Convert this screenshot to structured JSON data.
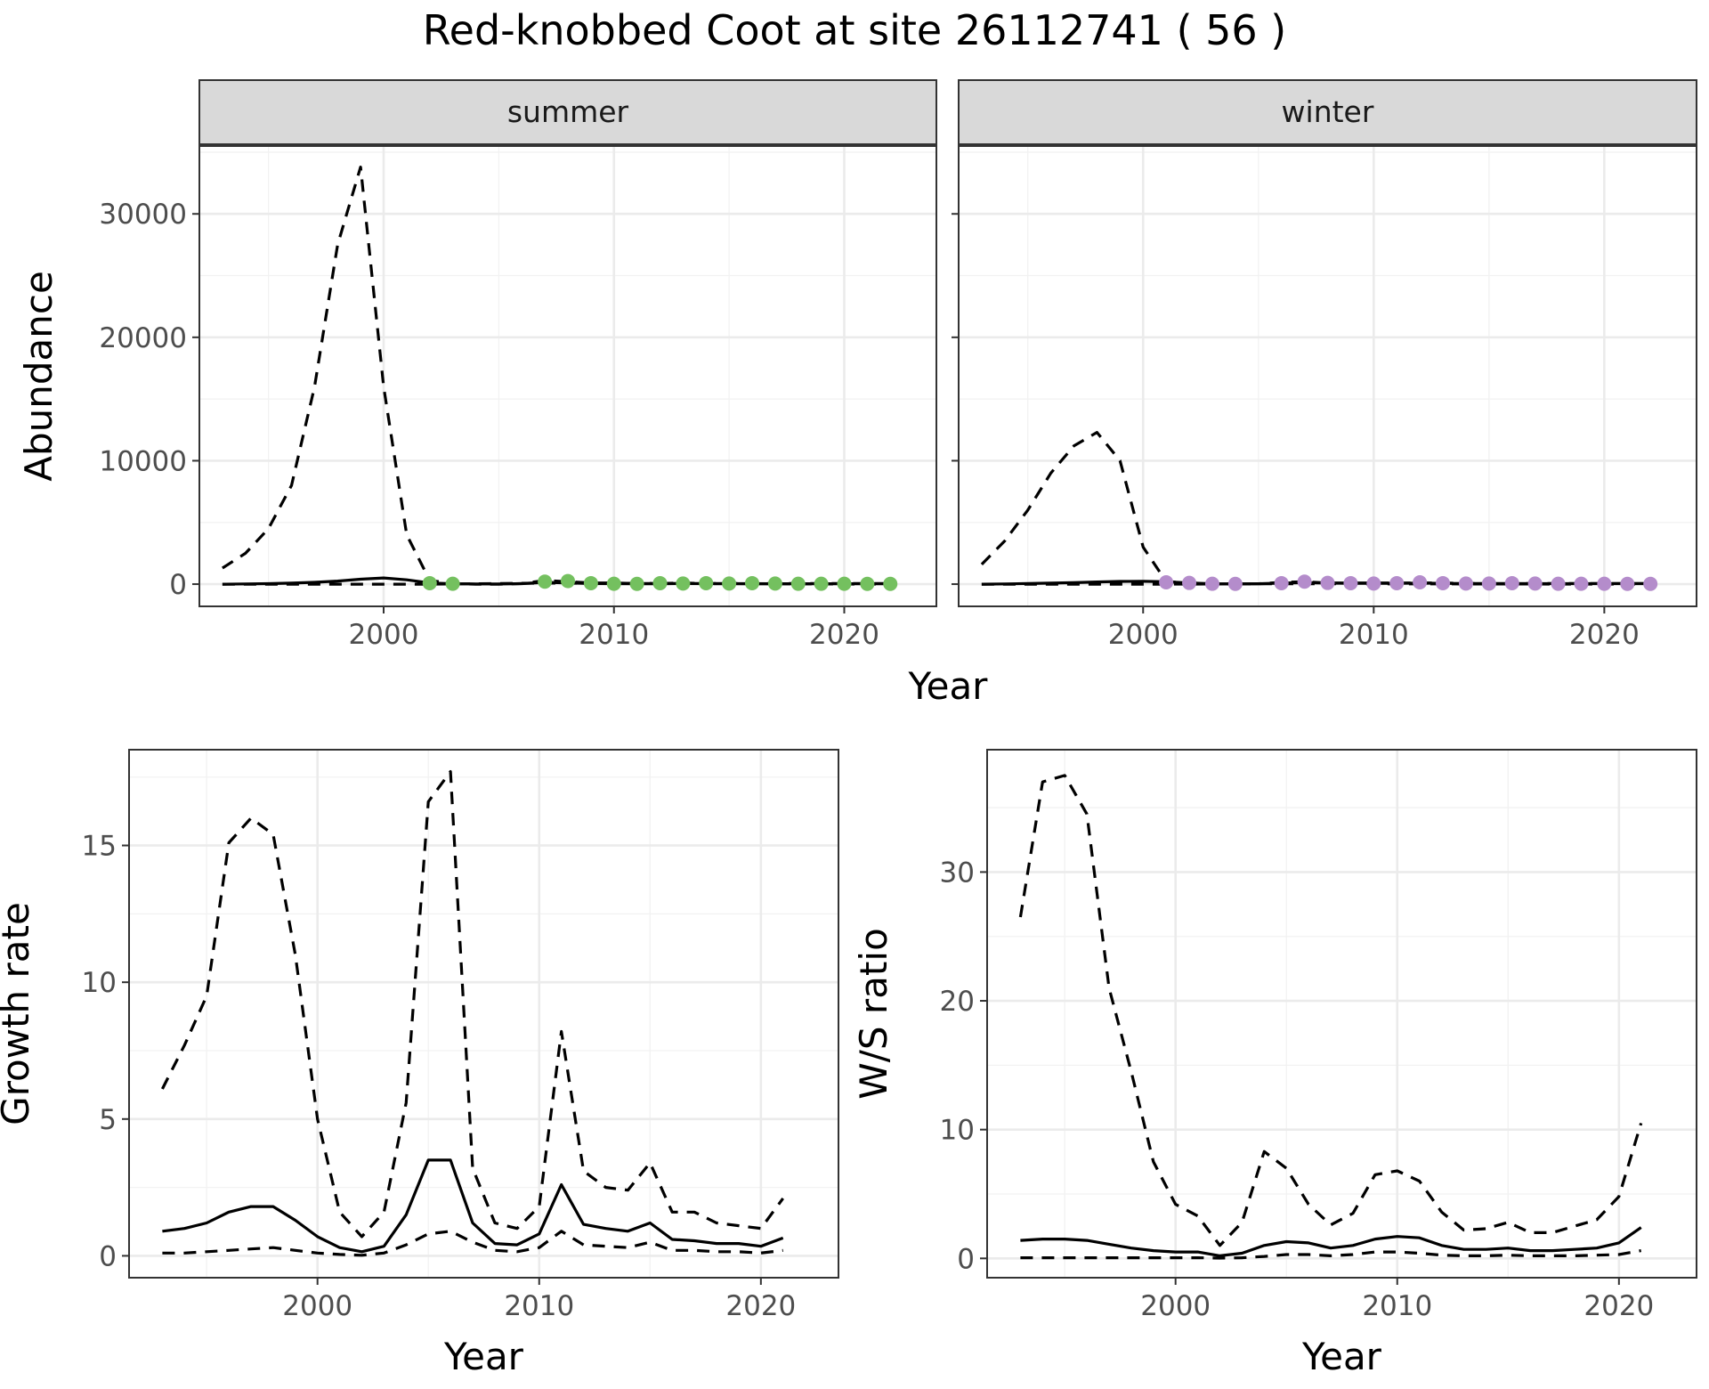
{
  "figure": {
    "title": "Red-knobbed Coot at site 26112741 ( 56 )"
  },
  "chart_data": [
    {
      "type": "line",
      "panel": "abundance-summer",
      "strip_label": "summer",
      "xlabel": "Year",
      "ylabel": "Abundance",
      "xlim": [
        1992,
        2024
      ],
      "ylim": [
        -1800,
        35500
      ],
      "x_ticks": [
        2000,
        2010,
        2020
      ],
      "y_ticks": [
        0,
        10000,
        20000,
        30000
      ],
      "point_color": "#74c05f",
      "series": [
        {
          "style": "dashed",
          "x": [
            1993,
            1994,
            1995,
            1996,
            1997,
            1998,
            1999,
            2000,
            2001,
            2002,
            2003,
            2004,
            2005,
            2006,
            2007,
            2008,
            2009,
            2010,
            2011,
            2012,
            2013,
            2014,
            2015,
            2016,
            2017,
            2018,
            2019,
            2020,
            2021,
            2022
          ],
          "y": [
            1300,
            2500,
            4500,
            8000,
            16000,
            27500,
            33800,
            16000,
            4000,
            300,
            50,
            0,
            0,
            50,
            300,
            200,
            100,
            100,
            50,
            50,
            100,
            50,
            50,
            50,
            50,
            50,
            50,
            50,
            50,
            50
          ]
        },
        {
          "style": "solid",
          "x": [
            1993,
            1994,
            1995,
            1996,
            1997,
            1998,
            1999,
            2000,
            2001,
            2002,
            2003,
            2004,
            2005,
            2006,
            2007,
            2008,
            2009,
            2010,
            2011,
            2012,
            2013,
            2014,
            2015,
            2016,
            2017,
            2018,
            2019,
            2020,
            2021,
            2022
          ],
          "y": [
            0,
            20,
            40,
            80,
            150,
            250,
            400,
            500,
            350,
            100,
            30,
            20,
            10,
            40,
            150,
            100,
            50,
            40,
            30,
            30,
            50,
            40,
            40,
            40,
            30,
            30,
            30,
            30,
            30,
            30
          ]
        },
        {
          "style": "dashed-lower",
          "x": [
            1993,
            2000,
            2002,
            2007,
            2022
          ],
          "y": [
            0,
            0,
            0,
            80,
            0
          ]
        }
      ],
      "points": {
        "x": [
          2002,
          2003,
          2007,
          2008,
          2009,
          2010,
          2011,
          2012,
          2013,
          2014,
          2015,
          2016,
          2017,
          2018,
          2019,
          2020,
          2021,
          2022
        ],
        "y": [
          80,
          30,
          200,
          250,
          80,
          30,
          20,
          80,
          50,
          80,
          50,
          80,
          50,
          30,
          30,
          30,
          20,
          20
        ]
      }
    },
    {
      "type": "line",
      "panel": "abundance-winter",
      "strip_label": "winter",
      "xlabel": "Year",
      "ylabel": "",
      "xlim": [
        1992,
        2024
      ],
      "ylim": [
        -1800,
        35500
      ],
      "x_ticks": [
        2000,
        2010,
        2020
      ],
      "y_ticks": [
        0,
        10000,
        20000,
        30000
      ],
      "point_color": "#b48ccb",
      "series": [
        {
          "style": "dashed",
          "x": [
            1993,
            1994,
            1995,
            1996,
            1997,
            1998,
            1999,
            2000,
            2001,
            2002,
            2003,
            2004,
            2005,
            2006,
            2007,
            2008,
            2009,
            2010,
            2011,
            2012,
            2013,
            2014,
            2015,
            2016,
            2017,
            2018,
            2019,
            2020,
            2021,
            2022
          ],
          "y": [
            1600,
            3500,
            6000,
            9000,
            11200,
            12300,
            10000,
            3000,
            200,
            100,
            30,
            20,
            30,
            150,
            200,
            100,
            100,
            100,
            100,
            100,
            100,
            50,
            50,
            50,
            50,
            50,
            50,
            50,
            50,
            50
          ]
        },
        {
          "style": "solid",
          "x": [
            1993,
            1994,
            1995,
            1996,
            1997,
            1998,
            1999,
            2000,
            2001,
            2002,
            2003,
            2004,
            2005,
            2006,
            2007,
            2008,
            2009,
            2010,
            2011,
            2012,
            2013,
            2014,
            2015,
            2016,
            2017,
            2018,
            2019,
            2020,
            2021,
            2022
          ],
          "y": [
            0,
            20,
            50,
            80,
            120,
            180,
            220,
            230,
            200,
            100,
            30,
            20,
            30,
            80,
            120,
            80,
            60,
            60,
            60,
            80,
            60,
            50,
            50,
            50,
            40,
            40,
            40,
            40,
            40,
            40
          ]
        },
        {
          "style": "dashed-lower",
          "x": [
            1993,
            2000,
            2001,
            2006,
            2022
          ],
          "y": [
            0,
            0,
            0,
            30,
            0
          ]
        }
      ],
      "points": {
        "x": [
          2001,
          2002,
          2003,
          2004,
          2006,
          2007,
          2008,
          2009,
          2010,
          2011,
          2012,
          2013,
          2014,
          2015,
          2016,
          2017,
          2018,
          2019,
          2020,
          2021,
          2022
        ],
        "y": [
          150,
          100,
          30,
          20,
          80,
          200,
          100,
          80,
          50,
          80,
          150,
          80,
          50,
          50,
          80,
          50,
          30,
          30,
          30,
          20,
          20
        ]
      }
    },
    {
      "type": "line",
      "panel": "growth-rate",
      "strip_label": "",
      "xlabel": "Year",
      "ylabel": "Growth rate",
      "xlim": [
        1991.5,
        2023.5
      ],
      "ylim": [
        -0.8,
        18.5
      ],
      "x_ticks": [
        2000,
        2010,
        2020
      ],
      "y_ticks": [
        0,
        5,
        10,
        15
      ],
      "series": [
        {
          "style": "dashed",
          "x": [
            1993,
            1994,
            1995,
            1996,
            1997,
            1998,
            1999,
            2000,
            2001,
            2002,
            2003,
            2004,
            2005,
            2006,
            2007,
            2008,
            2009,
            2010,
            2011,
            2012,
            2013,
            2014,
            2015,
            2016,
            2017,
            2018,
            2019,
            2020,
            2021
          ],
          "y": [
            6.1,
            7.7,
            9.5,
            15.1,
            16.0,
            15.4,
            11.0,
            5.0,
            1.6,
            0.7,
            1.6,
            5.6,
            16.6,
            17.7,
            3.2,
            1.2,
            1.0,
            1.8,
            8.2,
            3.1,
            2.5,
            2.4,
            3.4,
            1.6,
            1.6,
            1.2,
            1.1,
            1.0,
            2.1
          ]
        },
        {
          "style": "solid",
          "x": [
            1993,
            1994,
            1995,
            1996,
            1997,
            1998,
            1999,
            2000,
            2001,
            2002,
            2003,
            2004,
            2005,
            2006,
            2007,
            2008,
            2009,
            2010,
            2011,
            2012,
            2013,
            2014,
            2015,
            2016,
            2017,
            2018,
            2019,
            2020,
            2021
          ],
          "y": [
            0.9,
            1.0,
            1.2,
            1.6,
            1.8,
            1.8,
            1.3,
            0.7,
            0.3,
            0.15,
            0.35,
            1.5,
            3.5,
            3.5,
            1.2,
            0.45,
            0.4,
            0.8,
            2.6,
            1.15,
            1.0,
            0.9,
            1.2,
            0.6,
            0.55,
            0.45,
            0.45,
            0.35,
            0.65
          ]
        },
        {
          "style": "dashed",
          "x": [
            1993,
            1994,
            1995,
            1996,
            1997,
            1998,
            1999,
            2000,
            2001,
            2002,
            2003,
            2004,
            2005,
            2006,
            2007,
            2008,
            2009,
            2010,
            2011,
            2012,
            2013,
            2014,
            2015,
            2016,
            2017,
            2018,
            2019,
            2020,
            2021
          ],
          "y": [
            0.1,
            0.1,
            0.15,
            0.2,
            0.25,
            0.3,
            0.2,
            0.1,
            0.05,
            0.02,
            0.1,
            0.4,
            0.8,
            0.9,
            0.5,
            0.2,
            0.15,
            0.3,
            0.9,
            0.4,
            0.35,
            0.3,
            0.5,
            0.2,
            0.2,
            0.15,
            0.15,
            0.1,
            0.2
          ]
        }
      ]
    },
    {
      "type": "line",
      "panel": "ws-ratio",
      "strip_label": "",
      "xlabel": "Year",
      "ylabel": "W/S ratio",
      "xlim": [
        1991.5,
        2023.5
      ],
      "ylim": [
        -1.5,
        39.5
      ],
      "x_ticks": [
        2000,
        2010,
        2020
      ],
      "y_ticks": [
        0,
        10,
        20,
        30
      ],
      "series": [
        {
          "style": "dashed",
          "x": [
            1993,
            1994,
            1995,
            1996,
            1997,
            1998,
            1999,
            2000,
            2001,
            2002,
            2003,
            2004,
            2005,
            2006,
            2007,
            2008,
            2009,
            2010,
            2011,
            2012,
            2013,
            2014,
            2015,
            2016,
            2017,
            2018,
            2019,
            2020,
            2021
          ],
          "y": [
            26.5,
            37.0,
            37.5,
            34.5,
            21.0,
            14.5,
            7.5,
            4.2,
            3.3,
            1.0,
            2.8,
            8.3,
            7.0,
            4.2,
            2.6,
            3.5,
            6.5,
            6.8,
            6.0,
            3.6,
            2.2,
            2.3,
            2.8,
            2.0,
            2.0,
            2.5,
            3.0,
            4.8,
            10.5
          ]
        },
        {
          "style": "solid",
          "x": [
            1993,
            1994,
            1995,
            1996,
            1997,
            1998,
            1999,
            2000,
            2001,
            2002,
            2003,
            2004,
            2005,
            2006,
            2007,
            2008,
            2009,
            2010,
            2011,
            2012,
            2013,
            2014,
            2015,
            2016,
            2017,
            2018,
            2019,
            2020,
            2021
          ],
          "y": [
            1.4,
            1.5,
            1.5,
            1.4,
            1.1,
            0.8,
            0.6,
            0.5,
            0.5,
            0.2,
            0.4,
            1.0,
            1.3,
            1.2,
            0.8,
            1.0,
            1.5,
            1.7,
            1.6,
            1.0,
            0.7,
            0.7,
            0.8,
            0.6,
            0.6,
            0.7,
            0.8,
            1.2,
            2.4
          ]
        },
        {
          "style": "dashed",
          "x": [
            1993,
            1994,
            1995,
            1996,
            1997,
            1998,
            1999,
            2000,
            2001,
            2002,
            2003,
            2004,
            2005,
            2006,
            2007,
            2008,
            2009,
            2010,
            2011,
            2012,
            2013,
            2014,
            2015,
            2016,
            2017,
            2018,
            2019,
            2020,
            2021
          ],
          "y": [
            0.05,
            0.05,
            0.05,
            0.05,
            0.05,
            0.05,
            0.05,
            0.05,
            0.05,
            0.02,
            0.05,
            0.15,
            0.3,
            0.3,
            0.2,
            0.3,
            0.5,
            0.5,
            0.4,
            0.25,
            0.2,
            0.2,
            0.25,
            0.2,
            0.2,
            0.2,
            0.25,
            0.3,
            0.6
          ]
        }
      ]
    }
  ]
}
